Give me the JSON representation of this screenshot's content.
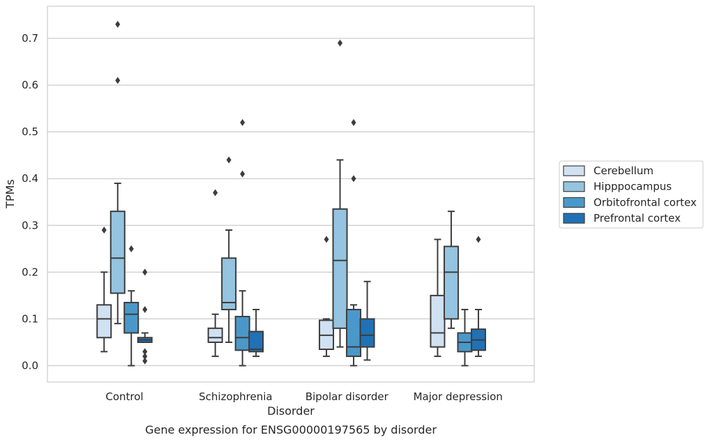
{
  "chart_data": {
    "type": "box",
    "title": "",
    "caption": "Gene expression for ENSG00000197565 by disorder",
    "xlabel": "Disorder",
    "ylabel": "TPMs",
    "ylim": [
      -0.035,
      0.77
    ],
    "yticks": [
      0.0,
      0.1,
      0.2,
      0.3,
      0.4,
      0.5,
      0.6,
      0.7
    ],
    "ytick_labels": [
      "0.0",
      "0.1",
      "0.2",
      "0.3",
      "0.4",
      "0.5",
      "0.6",
      "0.7"
    ],
    "grid": "horizontal",
    "legend_position": "right",
    "categories": [
      "Control",
      "Schizophrenia",
      "Bipolar disorder",
      "Major depression"
    ],
    "series": [
      {
        "name": "Cerebellum",
        "color": "#d0e1f2",
        "boxes": [
          {
            "whisker_low": 0.03,
            "q1": 0.06,
            "median": 0.1,
            "q3": 0.13,
            "whisker_high": 0.2,
            "outliers": [
              0.29
            ]
          },
          {
            "whisker_low": 0.02,
            "q1": 0.05,
            "median": 0.06,
            "q3": 0.08,
            "whisker_high": 0.11,
            "outliers": [
              0.37
            ]
          },
          {
            "whisker_low": 0.02,
            "q1": 0.035,
            "median": 0.065,
            "q3": 0.097,
            "whisker_high": 0.1,
            "outliers": [
              0.27
            ]
          },
          {
            "whisker_low": 0.02,
            "q1": 0.04,
            "median": 0.07,
            "q3": 0.15,
            "whisker_high": 0.27,
            "outliers": []
          }
        ]
      },
      {
        "name": "Hipppocampus",
        "color": "#94c4df",
        "boxes": [
          {
            "whisker_low": 0.09,
            "q1": 0.155,
            "median": 0.23,
            "q3": 0.33,
            "whisker_high": 0.39,
            "outliers": [
              0.61,
              0.73
            ]
          },
          {
            "whisker_low": 0.05,
            "q1": 0.12,
            "median": 0.135,
            "q3": 0.23,
            "whisker_high": 0.29,
            "outliers": [
              0.44
            ]
          },
          {
            "whisker_low": 0.04,
            "q1": 0.08,
            "median": 0.225,
            "q3": 0.335,
            "whisker_high": 0.44,
            "outliers": [
              0.69
            ]
          },
          {
            "whisker_low": 0.08,
            "q1": 0.1,
            "median": 0.2,
            "q3": 0.255,
            "whisker_high": 0.33,
            "outliers": []
          }
        ]
      },
      {
        "name": "Orbitofrontal cortex",
        "color": "#4a98c9",
        "boxes": [
          {
            "whisker_low": 0.0,
            "q1": 0.07,
            "median": 0.11,
            "q3": 0.135,
            "whisker_high": 0.16,
            "outliers": [
              0.25
            ]
          },
          {
            "whisker_low": 0.0,
            "q1": 0.033,
            "median": 0.06,
            "q3": 0.105,
            "whisker_high": 0.16,
            "outliers": [
              0.41,
              0.52
            ]
          },
          {
            "whisker_low": 0.0,
            "q1": 0.02,
            "median": 0.04,
            "q3": 0.12,
            "whisker_high": 0.13,
            "outliers": [
              0.4,
              0.52
            ]
          },
          {
            "whisker_low": 0.0,
            "q1": 0.03,
            "median": 0.05,
            "q3": 0.07,
            "whisker_high": 0.12,
            "outliers": []
          }
        ]
      },
      {
        "name": "Prefrontal cortex",
        "color": "#2171b5",
        "boxes": [
          {
            "whisker_low": 0.05,
            "q1": 0.05,
            "median": 0.055,
            "q3": 0.06,
            "whisker_high": 0.07,
            "outliers": [
              0.01,
              0.02,
              0.03,
              0.12,
              0.2
            ]
          },
          {
            "whisker_low": 0.02,
            "q1": 0.03,
            "median": 0.035,
            "q3": 0.073,
            "whisker_high": 0.12,
            "outliers": []
          },
          {
            "whisker_low": 0.012,
            "q1": 0.04,
            "median": 0.065,
            "q3": 0.1,
            "whisker_high": 0.18,
            "outliers": []
          },
          {
            "whisker_low": 0.02,
            "q1": 0.033,
            "median": 0.055,
            "q3": 0.078,
            "whisker_high": 0.12,
            "outliers": [
              0.27
            ]
          }
        ]
      }
    ]
  }
}
